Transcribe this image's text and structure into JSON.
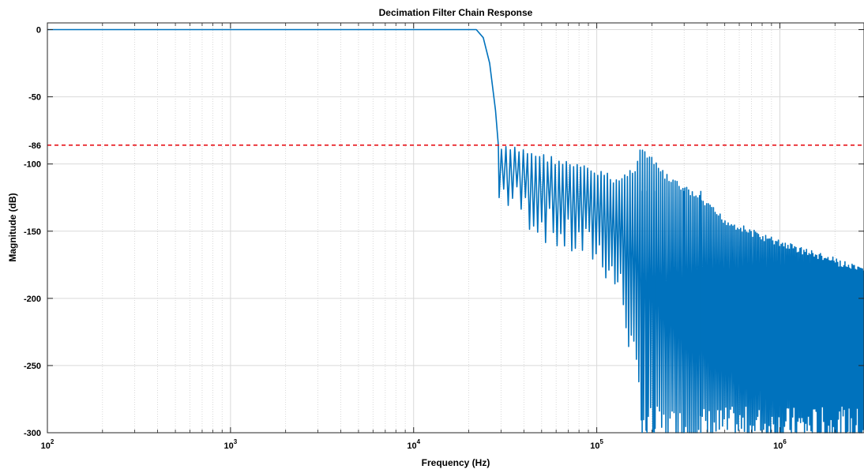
{
  "chart_data": {
    "type": "line",
    "title": "Decimation Filter Chain Response",
    "xlabel": "Frequency (Hz)",
    "ylabel": "Magnitude (dB)",
    "xscale": "log",
    "xlim": [
      100,
      2880000
    ],
    "ylim": [
      -300,
      5
    ],
    "grid": true,
    "x_ticks": [
      {
        "base": "10",
        "exp": "2",
        "value": 100
      },
      {
        "base": "10",
        "exp": "3",
        "value": 1000
      },
      {
        "base": "10",
        "exp": "4",
        "value": 10000
      },
      {
        "base": "10",
        "exp": "5",
        "value": 100000
      },
      {
        "base": "10",
        "exp": "6",
        "value": 1000000
      }
    ],
    "y_ticks": [
      {
        "label": "0",
        "value": 0
      },
      {
        "label": "-50",
        "value": -50
      },
      {
        "label": "-100",
        "value": -100
      },
      {
        "label": "-150",
        "value": -150
      },
      {
        "label": "-200",
        "value": -200
      },
      {
        "label": "-250",
        "value": -250
      },
      {
        "label": "-300",
        "value": -300
      }
    ],
    "reference_line": {
      "label": "-86",
      "value": -86,
      "color": "#e8151b",
      "style": "dashed"
    },
    "series_color": "#0072bd",
    "passband": {
      "x_end": 22000,
      "value": 0
    },
    "transition": [
      [
        22000,
        0
      ],
      [
        24000,
        -6
      ],
      [
        26000,
        -25
      ],
      [
        28000,
        -60
      ],
      [
        29000,
        -86
      ],
      [
        29300,
        -125
      ]
    ],
    "sidelobe_envelope": [
      [
        29000,
        -86
      ],
      [
        40000,
        -88
      ],
      [
        50000,
        -92
      ],
      [
        70000,
        -98
      ],
      [
        100000,
        -104
      ],
      [
        130000,
        -110
      ],
      [
        160000,
        -100
      ],
      [
        170000,
        -86
      ],
      [
        200000,
        -96
      ],
      [
        240000,
        -108
      ],
      [
        350000,
        -122
      ],
      [
        500000,
        -140
      ],
      [
        800000,
        -152
      ],
      [
        1200000,
        -160
      ],
      [
        2000000,
        -170
      ],
      [
        2880000,
        -178
      ]
    ],
    "null_floor": [
      [
        29000,
        -125
      ],
      [
        40000,
        -140
      ],
      [
        60000,
        -158
      ],
      [
        100000,
        -170
      ],
      [
        130000,
        -196
      ],
      [
        180000,
        -300
      ],
      [
        300000,
        -300
      ],
      [
        2880000,
        -300
      ]
    ],
    "lobes_per_decade": [
      [
        29000,
        40
      ],
      [
        100000,
        55
      ],
      [
        250000,
        90
      ],
      [
        600000,
        120
      ],
      [
        2880000,
        160
      ]
    ],
    "notches": [
      [
        177000,
        -300
      ],
      [
        188000,
        -300
      ],
      [
        206000,
        -300
      ],
      [
        300000,
        -300
      ],
      [
        370000,
        -300
      ]
    ]
  }
}
